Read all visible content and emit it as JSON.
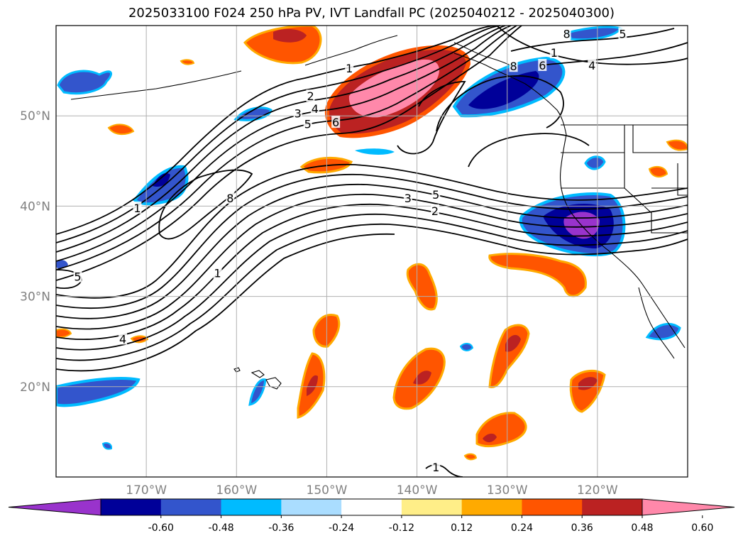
{
  "title": "2025033100 F024 250 hPa PV, IVT Landfall PC (2025040212 - 2025040300)",
  "map": {
    "lon_range": [
      -180,
      -110
    ],
    "lat_range": [
      10,
      60
    ],
    "lon_ticks": [
      {
        "lon": -170,
        "label": "170°W"
      },
      {
        "lon": -160,
        "label": "160°W"
      },
      {
        "lon": -150,
        "label": "150°W"
      },
      {
        "lon": -140,
        "label": "140°W"
      },
      {
        "lon": -130,
        "label": "130°W"
      },
      {
        "lon": -120,
        "label": "120°W"
      }
    ],
    "lat_ticks": [
      {
        "lat": 50,
        "label": "50°N"
      },
      {
        "lat": 40,
        "label": "40°N"
      },
      {
        "lat": 30,
        "label": "30°N"
      },
      {
        "lat": 20,
        "label": "20°N"
      }
    ],
    "grid": true
  },
  "colorbar": {
    "levels": [
      "-0.60",
      "-0.48",
      "-0.36",
      "-0.24",
      "-0.12",
      "0.12",
      "0.24",
      "0.36",
      "0.48",
      "0.60"
    ],
    "colors": [
      "#9933cc",
      "#000099",
      "#3355cc",
      "#00bbff",
      "#aaddff",
      "#ffffff",
      "#ffee88",
      "#ffaa00",
      "#ff5500",
      "#bb2222",
      "#ff88aa"
    ],
    "extend": "both"
  },
  "contour_labels": [
    {
      "text": "1",
      "lon": -147.5,
      "lat": 55.3
    },
    {
      "text": "2",
      "lon": -151.8,
      "lat": 52.2
    },
    {
      "text": "3",
      "lon": -153.2,
      "lat": 50.3
    },
    {
      "text": "4",
      "lon": -151.3,
      "lat": 50.8
    },
    {
      "text": "5",
      "lon": -152.1,
      "lat": 49.1
    },
    {
      "text": "6",
      "lon": -149.0,
      "lat": 49.3
    },
    {
      "text": "8",
      "lon": -129.3,
      "lat": 55.5
    },
    {
      "text": "6",
      "lon": -126.1,
      "lat": 55.6
    },
    {
      "text": "4",
      "lon": -120.6,
      "lat": 55.6
    },
    {
      "text": "1",
      "lon": -124.8,
      "lat": 57.0
    },
    {
      "text": "8",
      "lon": -123.4,
      "lat": 59.1
    },
    {
      "text": "5",
      "lon": -117.2,
      "lat": 59.1
    },
    {
      "text": "3",
      "lon": -141.0,
      "lat": 40.9
    },
    {
      "text": "5",
      "lon": -137.9,
      "lat": 41.3
    },
    {
      "text": "2",
      "lon": -138.0,
      "lat": 39.5
    },
    {
      "text": "8",
      "lon": -160.7,
      "lat": 40.9
    },
    {
      "text": "1",
      "lon": -171.0,
      "lat": 39.8
    },
    {
      "text": "1",
      "lon": -162.1,
      "lat": 32.6
    },
    {
      "text": "5",
      "lon": -177.6,
      "lat": 32.2
    },
    {
      "text": "4",
      "lon": -172.6,
      "lat": 25.3
    },
    {
      "text": "1",
      "lon": -137.9,
      "lat": 11.1
    }
  ]
}
